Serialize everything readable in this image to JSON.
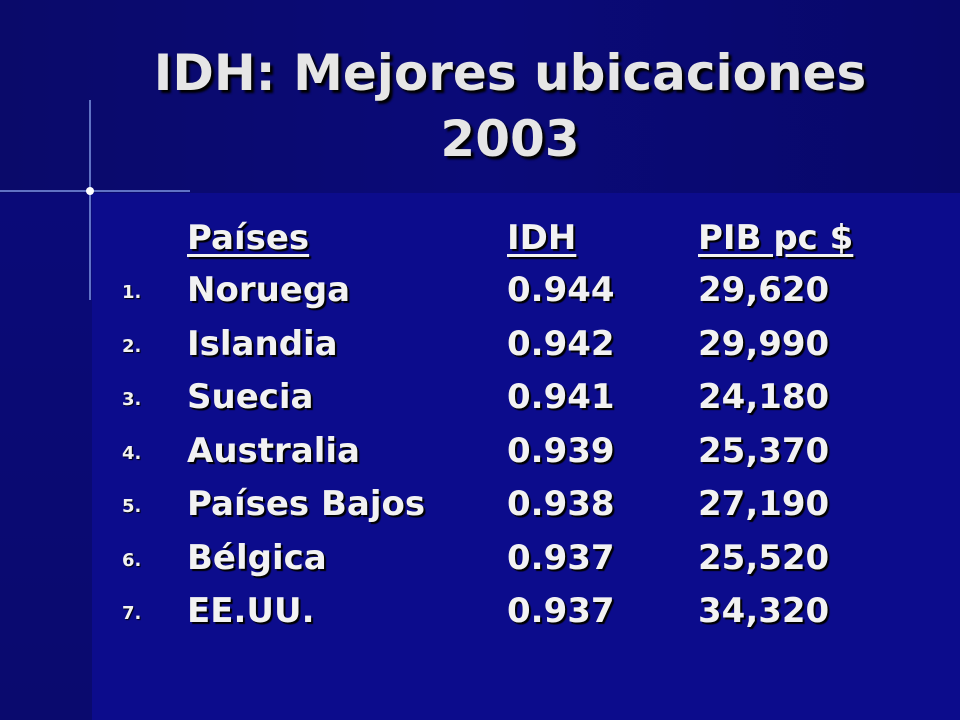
{
  "title": "IDH: Mejores ubicaciones 2003",
  "table": {
    "header": [
      "Países",
      "IDH",
      "PIB pc $"
    ],
    "rows": [
      [
        "1.",
        "Noruega",
        "0.944",
        "29,620"
      ],
      [
        "2.",
        "Islandia",
        "0.942",
        "29,990"
      ],
      [
        "3.",
        "Suecia",
        "0.941",
        "24,180"
      ],
      [
        "4.",
        "Australia",
        "0.939",
        "25,370"
      ],
      [
        "5.",
        "Países Bajos",
        "0.938",
        "27,190"
      ],
      [
        "6.",
        "Bélgica",
        "0.937",
        "25,520"
      ],
      [
        "7.",
        "EE.UU.",
        "0.937",
        "34,320"
      ]
    ]
  }
}
